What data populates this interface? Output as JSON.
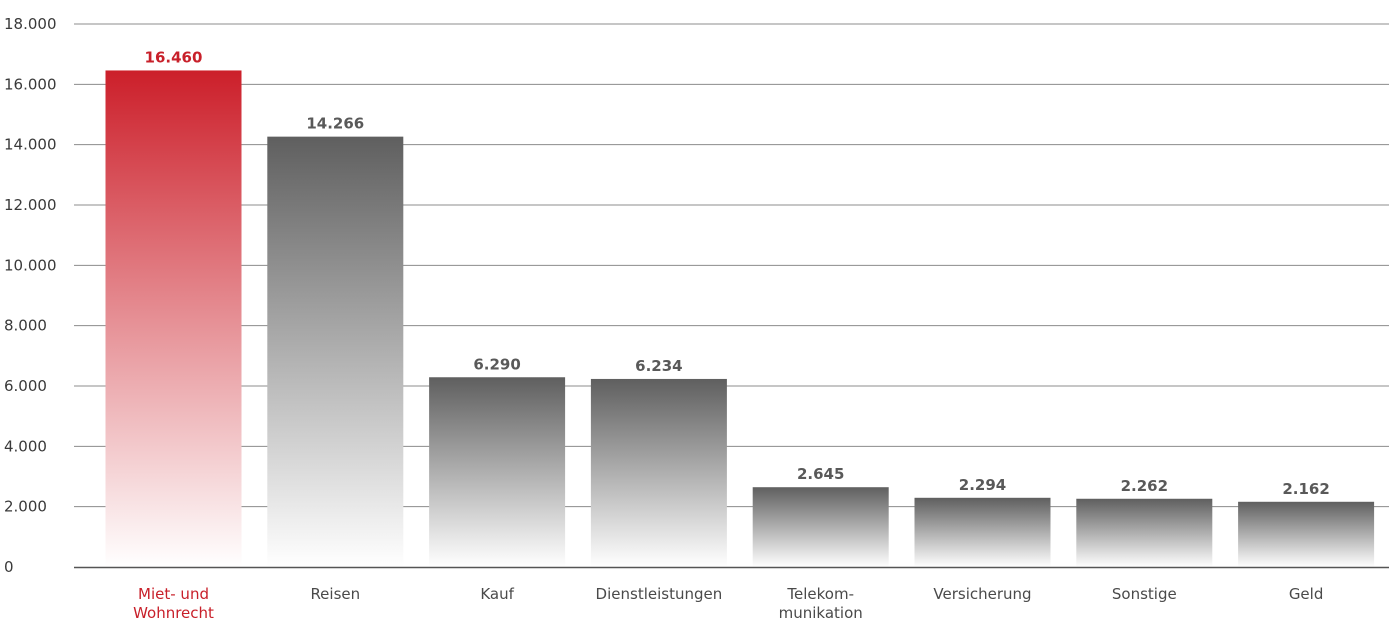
{
  "chart_data": {
    "type": "bar",
    "title": "",
    "xlabel": "",
    "ylabel": "",
    "ylim": [
      0,
      18000
    ],
    "yticks": [
      0,
      2000,
      4000,
      6000,
      8000,
      10000,
      12000,
      14000,
      16000,
      18000
    ],
    "ytick_labels": [
      "0",
      "2.000",
      "4.000",
      "6.000",
      "8.000",
      "10.000",
      "12.000",
      "14.000",
      "16.000",
      "18.000"
    ],
    "grid": true,
    "categories": [
      [
        "Miet- und",
        "Wohnrecht"
      ],
      [
        "Reisen"
      ],
      [
        "Kauf"
      ],
      [
        "Dienstleistungen"
      ],
      [
        "Telekom-",
        "munikation"
      ],
      [
        "Versicherung"
      ],
      [
        "Sonstige"
      ],
      [
        "Geld"
      ]
    ],
    "values": [
      16460,
      14266,
      6290,
      6234,
      2645,
      2294,
      2262,
      2162
    ],
    "value_labels": [
      "16.460",
      "14.266",
      "6.290",
      "6.234",
      "2.645",
      "2.294",
      "2.262",
      "2.162"
    ],
    "highlight_index": 0,
    "colors": {
      "highlight": "#cc1f2a",
      "highlight_label": "#c8202a",
      "bar": "#5f5f5f",
      "value_label": "#595959",
      "grid": "#8c8c8c",
      "axis": "#555555"
    }
  }
}
